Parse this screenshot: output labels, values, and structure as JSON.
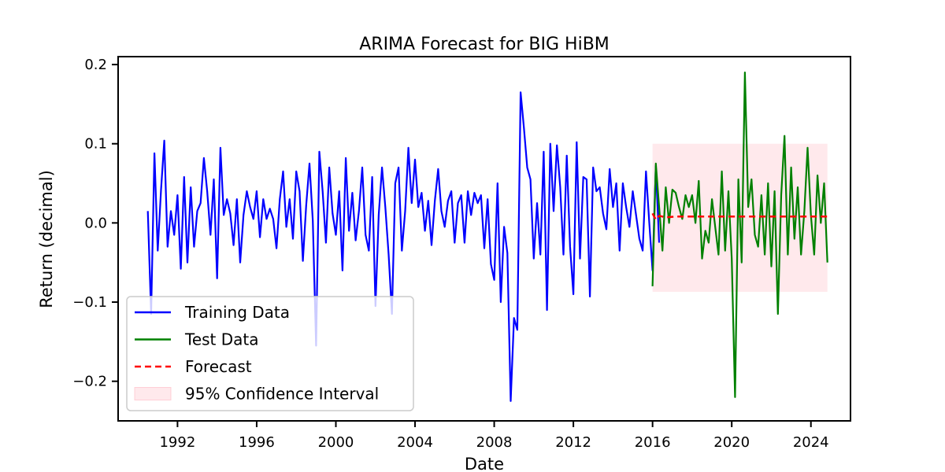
{
  "chart_data": {
    "type": "line",
    "title": "ARIMA Forecast for BIG HiBM",
    "xlabel": "Date",
    "ylabel": "Return (decimal)",
    "xlim": [
      "1989-01",
      "2026-01"
    ],
    "ylim": [
      -0.25,
      0.21
    ],
    "x_ticks": [
      "1992",
      "1996",
      "2000",
      "2004",
      "2008",
      "2012",
      "2016",
      "2020",
      "2024"
    ],
    "y_ticks": [
      {
        "value": 0.2,
        "label": "0.2"
      },
      {
        "value": 0.1,
        "label": "0.1"
      },
      {
        "value": 0.0,
        "label": "0.0"
      },
      {
        "value": -0.1,
        "label": "−0.1"
      },
      {
        "value": -0.2,
        "label": "−0.2"
      }
    ],
    "grid": false,
    "legend_position": "lower-left",
    "series": [
      {
        "name": "Training Data",
        "color": "#0000ff",
        "style": "solid",
        "points": [
          [
            "1990-07",
            0.015
          ],
          [
            "1990-09",
            -0.115
          ],
          [
            "1990-11",
            0.088
          ],
          [
            "1991-01",
            -0.035
          ],
          [
            "1991-03",
            0.042
          ],
          [
            "1991-05",
            0.104
          ],
          [
            "1991-07",
            -0.03
          ],
          [
            "1991-09",
            0.015
          ],
          [
            "1991-11",
            -0.015
          ],
          [
            "1992-01",
            0.035
          ],
          [
            "1992-03",
            -0.058
          ],
          [
            "1992-05",
            0.058
          ],
          [
            "1992-07",
            -0.05
          ],
          [
            "1992-09",
            0.045
          ],
          [
            "1992-11",
            -0.03
          ],
          [
            "1993-01",
            0.015
          ],
          [
            "1993-03",
            0.025
          ],
          [
            "1993-05",
            0.082
          ],
          [
            "1993-07",
            0.04
          ],
          [
            "1993-09",
            -0.015
          ],
          [
            "1993-11",
            0.055
          ],
          [
            "1994-01",
            -0.07
          ],
          [
            "1994-03",
            0.095
          ],
          [
            "1994-05",
            0.01
          ],
          [
            "1994-07",
            0.03
          ],
          [
            "1994-09",
            0.012
          ],
          [
            "1994-11",
            -0.028
          ],
          [
            "1995-01",
            0.03
          ],
          [
            "1995-03",
            -0.05
          ],
          [
            "1995-05",
            0.01
          ],
          [
            "1995-07",
            0.04
          ],
          [
            "1995-09",
            0.02
          ],
          [
            "1995-11",
            0.005
          ],
          [
            "1996-01",
            0.04
          ],
          [
            "1996-03",
            -0.018
          ],
          [
            "1996-05",
            0.03
          ],
          [
            "1996-07",
            0.005
          ],
          [
            "1996-09",
            0.018
          ],
          [
            "1996-11",
            0.005
          ],
          [
            "1997-01",
            -0.032
          ],
          [
            "1997-03",
            0.03
          ],
          [
            "1997-05",
            0.065
          ],
          [
            "1997-07",
            -0.005
          ],
          [
            "1997-09",
            0.03
          ],
          [
            "1997-11",
            -0.02
          ],
          [
            "1998-01",
            0.065
          ],
          [
            "1998-03",
            0.04
          ],
          [
            "1998-05",
            -0.048
          ],
          [
            "1998-07",
            0.022
          ],
          [
            "1998-09",
            0.075
          ],
          [
            "1998-11",
            0.003
          ],
          [
            "1999-01",
            -0.155
          ],
          [
            "1999-03",
            0.09
          ],
          [
            "1999-05",
            0.04
          ],
          [
            "1999-07",
            -0.025
          ],
          [
            "1999-09",
            0.07
          ],
          [
            "1999-11",
            0.012
          ],
          [
            "2000-01",
            -0.015
          ],
          [
            "2000-03",
            0.04
          ],
          [
            "2000-05",
            -0.06
          ],
          [
            "2000-07",
            0.082
          ],
          [
            "2000-09",
            -0.01
          ],
          [
            "2000-11",
            0.038
          ],
          [
            "2001-01",
            -0.022
          ],
          [
            "2001-03",
            0.015
          ],
          [
            "2001-05",
            0.07
          ],
          [
            "2001-07",
            -0.015
          ],
          [
            "2001-09",
            -0.035
          ],
          [
            "2001-11",
            0.058
          ],
          [
            "2002-01",
            -0.105
          ],
          [
            "2002-03",
            0.01
          ],
          [
            "2002-05",
            0.07
          ],
          [
            "2002-07",
            0.02
          ],
          [
            "2002-09",
            -0.04
          ],
          [
            "2002-11",
            -0.115
          ],
          [
            "2003-01",
            0.05
          ],
          [
            "2003-03",
            0.07
          ],
          [
            "2003-05",
            -0.035
          ],
          [
            "2003-07",
            0.015
          ],
          [
            "2003-09",
            0.095
          ],
          [
            "2003-11",
            0.025
          ],
          [
            "2004-01",
            0.08
          ],
          [
            "2004-03",
            0.02
          ],
          [
            "2004-05",
            0.038
          ],
          [
            "2004-07",
            -0.01
          ],
          [
            "2004-09",
            0.028
          ],
          [
            "2004-11",
            -0.028
          ],
          [
            "2005-01",
            0.028
          ],
          [
            "2005-03",
            0.068
          ],
          [
            "2005-05",
            0.015
          ],
          [
            "2005-07",
            -0.005
          ],
          [
            "2005-09",
            0.028
          ],
          [
            "2005-11",
            0.04
          ],
          [
            "2006-01",
            -0.025
          ],
          [
            "2006-03",
            0.025
          ],
          [
            "2006-05",
            0.035
          ],
          [
            "2006-07",
            -0.025
          ],
          [
            "2006-09",
            0.04
          ],
          [
            "2006-11",
            0.01
          ],
          [
            "2007-01",
            0.038
          ],
          [
            "2007-03",
            0.025
          ],
          [
            "2007-05",
            0.035
          ],
          [
            "2007-07",
            -0.032
          ],
          [
            "2007-09",
            0.03
          ],
          [
            "2007-11",
            -0.052
          ],
          [
            "2008-01",
            -0.072
          ],
          [
            "2008-03",
            0.05
          ],
          [
            "2008-05",
            -0.1
          ],
          [
            "2008-07",
            -0.005
          ],
          [
            "2008-09",
            -0.038
          ],
          [
            "2008-11",
            -0.225
          ],
          [
            "2009-01",
            -0.12
          ],
          [
            "2009-03",
            -0.135
          ],
          [
            "2009-05",
            0.165
          ],
          [
            "2009-07",
            0.12
          ],
          [
            "2009-09",
            0.07
          ],
          [
            "2009-11",
            0.055
          ],
          [
            "2010-01",
            -0.045
          ],
          [
            "2010-03",
            0.025
          ],
          [
            "2010-05",
            -0.04
          ],
          [
            "2010-07",
            0.09
          ],
          [
            "2010-09",
            -0.11
          ],
          [
            "2010-11",
            0.1
          ],
          [
            "2011-01",
            0.015
          ],
          [
            "2011-03",
            0.098
          ],
          [
            "2011-05",
            0.045
          ],
          [
            "2011-07",
            -0.04
          ],
          [
            "2011-09",
            0.085
          ],
          [
            "2011-11",
            -0.03
          ],
          [
            "2012-01",
            -0.09
          ],
          [
            "2012-03",
            0.102
          ],
          [
            "2012-05",
            -0.045
          ],
          [
            "2012-07",
            0.058
          ],
          [
            "2012-09",
            0.055
          ],
          [
            "2012-11",
            -0.093
          ],
          [
            "2013-01",
            0.07
          ],
          [
            "2013-03",
            0.04
          ],
          [
            "2013-05",
            0.045
          ],
          [
            "2013-07",
            0.012
          ],
          [
            "2013-09",
            -0.008
          ],
          [
            "2013-11",
            0.068
          ],
          [
            "2014-01",
            0.02
          ],
          [
            "2014-03",
            0.05
          ],
          [
            "2014-05",
            -0.035
          ],
          [
            "2014-07",
            0.05
          ],
          [
            "2014-09",
            0.02
          ],
          [
            "2014-11",
            -0.005
          ],
          [
            "2015-01",
            0.04
          ],
          [
            "2015-03",
            0.01
          ],
          [
            "2015-05",
            -0.02
          ],
          [
            "2015-07",
            -0.035
          ],
          [
            "2015-09",
            0.065
          ],
          [
            "2015-11",
            0.0
          ],
          [
            "2016-01",
            -0.06
          ],
          [
            "2016-03",
            0.072
          ],
          [
            "2016-05",
            -0.025
          ]
        ]
      },
      {
        "name": "Test Data",
        "color": "#008000",
        "style": "solid",
        "points": [
          [
            "2016-01",
            -0.08
          ],
          [
            "2016-03",
            0.075
          ],
          [
            "2016-05",
            0.02
          ],
          [
            "2016-07",
            -0.035
          ],
          [
            "2016-09",
            0.045
          ],
          [
            "2016-11",
            0.0
          ],
          [
            "2017-01",
            0.042
          ],
          [
            "2017-03",
            0.038
          ],
          [
            "2017-05",
            0.02
          ],
          [
            "2017-07",
            0.005
          ],
          [
            "2017-09",
            0.035
          ],
          [
            "2017-11",
            0.02
          ],
          [
            "2018-01",
            0.035
          ],
          [
            "2018-03",
            0.0
          ],
          [
            "2018-05",
            0.053
          ],
          [
            "2018-07",
            -0.045
          ],
          [
            "2018-09",
            -0.01
          ],
          [
            "2018-11",
            -0.025
          ],
          [
            "2019-01",
            0.03
          ],
          [
            "2019-03",
            -0.005
          ],
          [
            "2019-05",
            -0.04
          ],
          [
            "2019-07",
            0.065
          ],
          [
            "2019-09",
            -0.035
          ],
          [
            "2019-11",
            0.04
          ],
          [
            "2020-01",
            -0.045
          ],
          [
            "2020-03",
            -0.22
          ],
          [
            "2020-05",
            0.055
          ],
          [
            "2020-07",
            -0.05
          ],
          [
            "2020-09",
            0.19
          ],
          [
            "2020-11",
            0.02
          ],
          [
            "2021-01",
            0.055
          ],
          [
            "2021-03",
            -0.015
          ],
          [
            "2021-05",
            -0.03
          ],
          [
            "2021-07",
            0.035
          ],
          [
            "2021-09",
            -0.04
          ],
          [
            "2021-11",
            0.05
          ],
          [
            "2022-01",
            -0.055
          ],
          [
            "2022-03",
            0.04
          ],
          [
            "2022-05",
            -0.115
          ],
          [
            "2022-07",
            0.035
          ],
          [
            "2022-09",
            0.11
          ],
          [
            "2022-11",
            -0.04
          ],
          [
            "2023-01",
            0.07
          ],
          [
            "2023-03",
            -0.02
          ],
          [
            "2023-05",
            0.045
          ],
          [
            "2023-07",
            -0.04
          ],
          [
            "2023-09",
            0.015
          ],
          [
            "2023-11",
            0.095
          ],
          [
            "2024-01",
            0.01
          ],
          [
            "2024-03",
            -0.04
          ],
          [
            "2024-05",
            0.06
          ],
          [
            "2024-07",
            0.0
          ],
          [
            "2024-09",
            0.05
          ],
          [
            "2024-11",
            -0.05
          ]
        ]
      },
      {
        "name": "Forecast",
        "color": "#ff0000",
        "style": "dashed",
        "points": [
          [
            "2016-01",
            0.012
          ],
          [
            "2016-03",
            0.004
          ],
          [
            "2016-05",
            0.009
          ],
          [
            "2016-09",
            0.007
          ],
          [
            "2017-03",
            0.008
          ],
          [
            "2024-11",
            0.008
          ]
        ]
      }
    ],
    "confidence_interval": {
      "name": "95% Confidence Interval",
      "color": "#ffb6c1",
      "opacity": 0.3,
      "x_start": "2016-01",
      "x_end": "2024-11",
      "upper": 0.1,
      "lower": -0.087
    }
  }
}
